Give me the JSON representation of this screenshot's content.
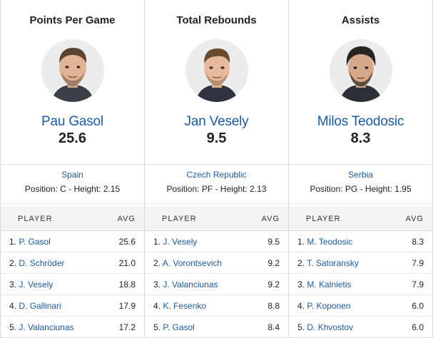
{
  "columns": [
    {
      "stat_title": "Points Per Game",
      "leader_name": "Pau Gasol",
      "leader_value": "25.6",
      "country": "Spain",
      "position_line": "Position: C - Height: 2.15",
      "header_player": "PLAYER",
      "header_avg": "AVG",
      "rows": [
        {
          "rank": "1.",
          "name": "P. Gasol",
          "avg": "25.6"
        },
        {
          "rank": "2.",
          "name": "D. Schröder",
          "avg": "21.0"
        },
        {
          "rank": "3.",
          "name": "J. Vesely",
          "avg": "18.8"
        },
        {
          "rank": "4.",
          "name": "D. Gallinari",
          "avg": "17.9"
        },
        {
          "rank": "5.",
          "name": "J. Valanciunas",
          "avg": "17.2"
        }
      ]
    },
    {
      "stat_title": "Total Rebounds",
      "leader_name": "Jan Vesely",
      "leader_value": "9.5",
      "country": "Czech Republic",
      "position_line": "Position: PF - Height: 2.13",
      "header_player": "PLAYER",
      "header_avg": "AVG",
      "rows": [
        {
          "rank": "1.",
          "name": "J. Vesely",
          "avg": "9.5"
        },
        {
          "rank": "2.",
          "name": "A. Vorontsevich",
          "avg": "9.2"
        },
        {
          "rank": "3.",
          "name": "J. Valanciunas",
          "avg": "9.2"
        },
        {
          "rank": "4.",
          "name": "K. Fesenko",
          "avg": "8.8"
        },
        {
          "rank": "5.",
          "name": "P. Gasol",
          "avg": "8.4"
        }
      ]
    },
    {
      "stat_title": "Assists",
      "leader_name": "Milos Teodosic",
      "leader_value": "8.3",
      "country": "Serbia",
      "position_line": "Position: PG - Height: 1.95",
      "header_player": "PLAYER",
      "header_avg": "AVG",
      "rows": [
        {
          "rank": "1.",
          "name": "M. Teodosic",
          "avg": "8.3"
        },
        {
          "rank": "2.",
          "name": "T. Satoransky",
          "avg": "7.9"
        },
        {
          "rank": "3.",
          "name": "M. Kalnietis",
          "avg": "7.9"
        },
        {
          "rank": "4.",
          "name": "P. Koponen",
          "avg": "6.0"
        },
        {
          "rank": "5.",
          "name": "D. Khvostov",
          "avg": "6.0"
        }
      ]
    }
  ],
  "colors": {
    "link": "#1b5aa6",
    "header_bg": "#f4f4f4",
    "border": "#d9d9d9"
  },
  "icons": [
    "player-photo-icon"
  ]
}
